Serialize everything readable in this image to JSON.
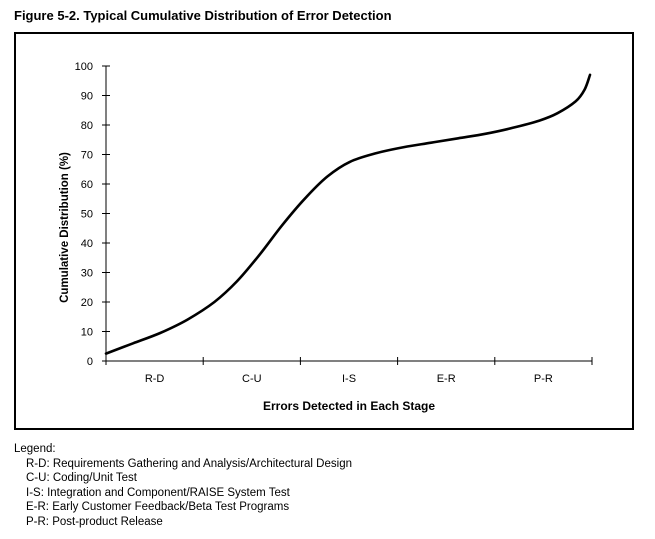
{
  "figure_title": "Figure 5-2.  Typical Cumulative Distribution of Error Detection",
  "chart_data": {
    "type": "line",
    "xlabel": "Errors Detected in Each Stage",
    "ylabel": "Cumulative Distribution (%)",
    "categories": [
      "R-D",
      "C-U",
      "I-S",
      "E-R",
      "P-R"
    ],
    "ylim": [
      0,
      100
    ],
    "yticks": [
      0,
      10,
      20,
      30,
      40,
      50,
      60,
      70,
      80,
      90,
      100
    ],
    "grid": false,
    "series": [
      {
        "values": [
          [
            0.0,
            2.5
          ],
          [
            0.3,
            6
          ],
          [
            0.6,
            9.5
          ],
          [
            0.9,
            14
          ],
          [
            1.2,
            20
          ],
          [
            1.45,
            27
          ],
          [
            1.7,
            36
          ],
          [
            1.95,
            46
          ],
          [
            2.2,
            55
          ],
          [
            2.45,
            62.5
          ],
          [
            2.7,
            67.5
          ],
          [
            3.0,
            70.5
          ],
          [
            3.3,
            72.5
          ],
          [
            3.6,
            74
          ],
          [
            3.9,
            75.5
          ],
          [
            4.2,
            77
          ],
          [
            4.5,
            79
          ],
          [
            4.8,
            81.5
          ],
          [
            5.0,
            84
          ],
          [
            5.2,
            88
          ],
          [
            5.3,
            92
          ],
          [
            5.36,
            97
          ]
        ]
      }
    ]
  },
  "legend": {
    "heading": "Legend:",
    "items": [
      "R-D:  Requirements Gathering and Analysis/Architectural Design",
      "C-U:  Coding/Unit Test",
      "I-S:  Integration and Component/RAISE System Test",
      "E-R:  Early Customer Feedback/Beta Test Programs",
      "P-R:  Post-product Release"
    ]
  }
}
